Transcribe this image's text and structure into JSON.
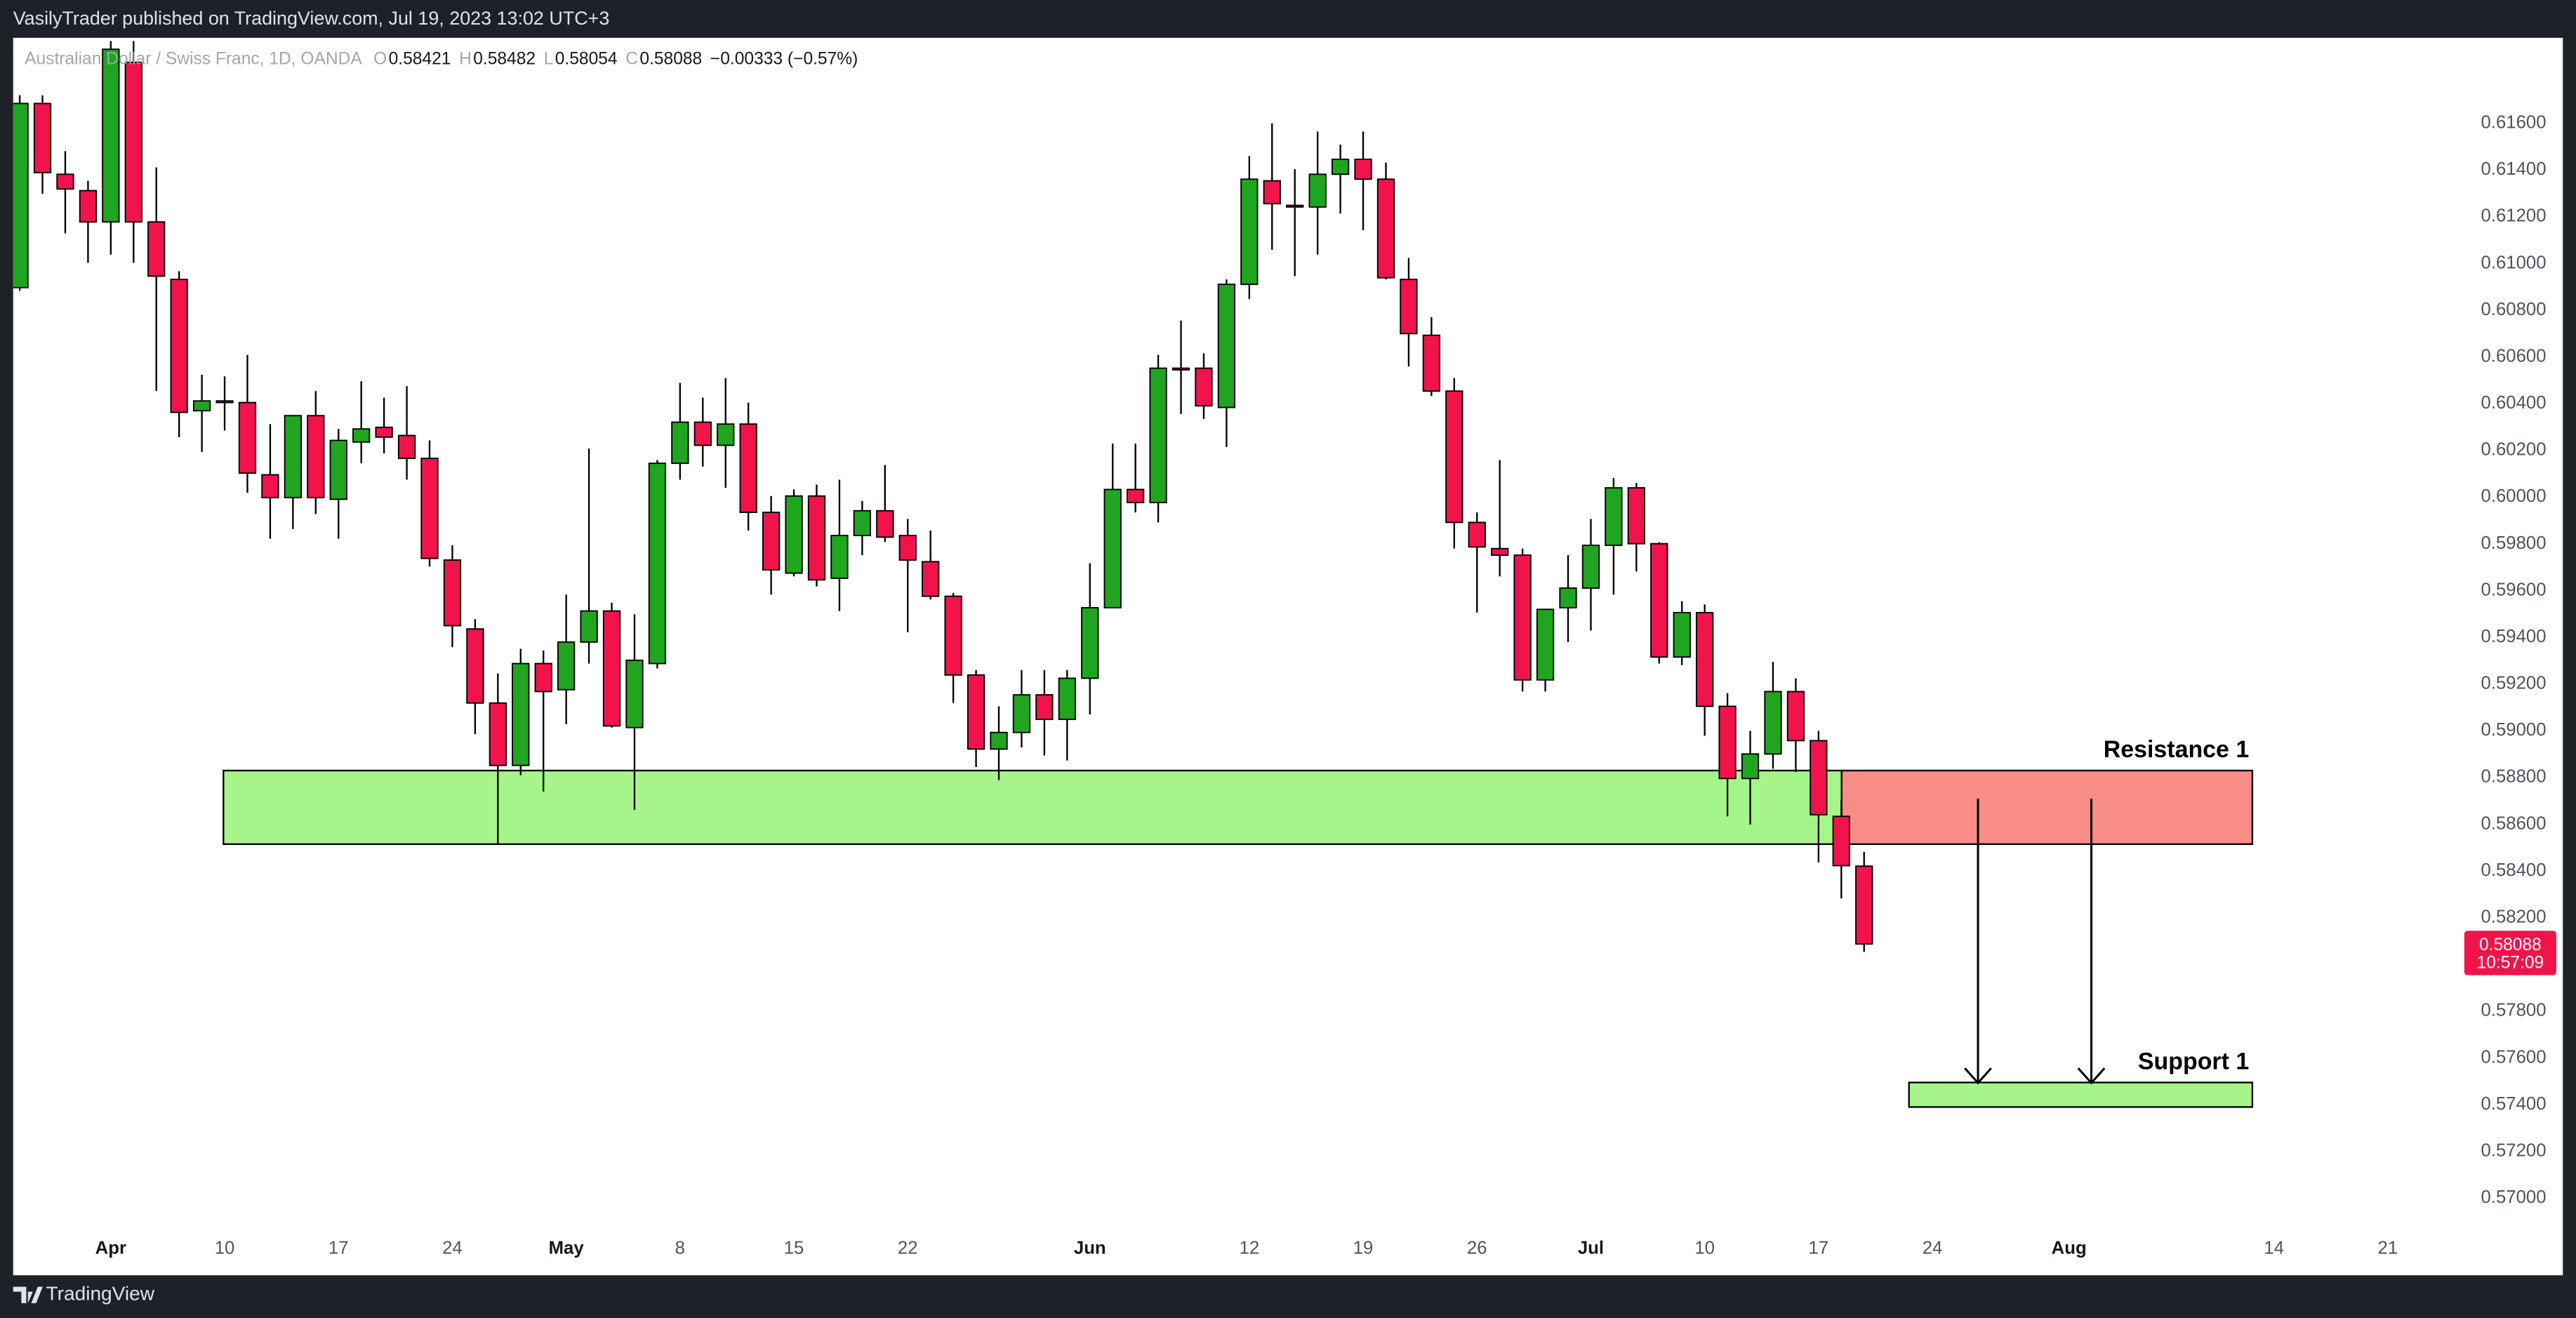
{
  "header": {
    "published": "VasilyTrader published on TradingView.com, Jul 19, 2023 13:02 UTC+3"
  },
  "footer": {
    "brand": "TradingView"
  },
  "chart_data": {
    "type": "candlestick",
    "title": "Australian Dollar / Swiss Franc, 1D, OANDA",
    "legend_keys": [
      "O",
      "H",
      "L",
      "C"
    ],
    "change_label": "−0.00333 (−0.57%)",
    "countdown": "10:57:09",
    "up_color": "#1fa51f",
    "down_color": "#f2134b",
    "x": [
      "2023-03-28",
      "2023-03-29",
      "2023-03-30",
      "2023-03-31",
      "2023-04-03",
      "2023-04-04",
      "2023-04-05",
      "2023-04-06",
      "2023-04-07",
      "2023-04-10",
      "2023-04-11",
      "2023-04-12",
      "2023-04-13",
      "2023-04-14",
      "2023-04-17",
      "2023-04-18",
      "2023-04-19",
      "2023-04-20",
      "2023-04-21",
      "2023-04-24",
      "2023-04-25",
      "2023-04-26",
      "2023-04-27",
      "2023-04-28",
      "2023-05-01",
      "2023-05-02",
      "2023-05-03",
      "2023-05-04",
      "2023-05-05",
      "2023-05-08",
      "2023-05-09",
      "2023-05-10",
      "2023-05-11",
      "2023-05-12",
      "2023-05-15",
      "2023-05-16",
      "2023-05-17",
      "2023-05-18",
      "2023-05-19",
      "2023-05-22",
      "2023-05-23",
      "2023-05-24",
      "2023-05-25",
      "2023-05-26",
      "2023-05-29",
      "2023-05-30",
      "2023-05-31",
      "2023-06-01",
      "2023-06-02",
      "2023-06-05",
      "2023-06-06",
      "2023-06-07",
      "2023-06-08",
      "2023-06-09",
      "2023-06-12",
      "2023-06-13",
      "2023-06-14",
      "2023-06-15",
      "2023-06-16",
      "2023-06-19",
      "2023-06-20",
      "2023-06-21",
      "2023-06-22",
      "2023-06-23",
      "2023-06-26",
      "2023-06-27",
      "2023-06-28",
      "2023-06-29",
      "2023-06-30",
      "2023-07-03",
      "2023-07-04",
      "2023-07-05",
      "2023-07-06",
      "2023-07-07",
      "2023-07-10",
      "2023-07-11",
      "2023-07-12",
      "2023-07-13",
      "2023-07-14",
      "2023-07-17",
      "2023-07-18",
      "2023-07-19"
    ],
    "open": [
      0.60897,
      0.61685,
      0.61382,
      0.61312,
      0.61178,
      0.61861,
      0.61178,
      0.60932,
      0.6037,
      0.60412,
      0.60405,
      0.60096,
      0.59998,
      0.60349,
      0.59991,
      0.60236,
      0.60299,
      0.60264,
      0.60166,
      0.59731,
      0.59436,
      0.59119,
      0.58852,
      0.59288,
      0.59176,
      0.5938,
      0.59513,
      0.59014,
      0.59288,
      0.60145,
      0.60321,
      0.60222,
      0.60313,
      0.59935,
      0.59675,
      0.60005,
      0.59653,
      0.59836,
      0.59942,
      0.59836,
      0.59724,
      0.59576,
      0.59239,
      0.58922,
      0.58993,
      0.59154,
      0.59049,
      0.59225,
      0.59527,
      0.60033,
      0.59977,
      0.60552,
      0.60552,
      0.60384,
      0.60911,
      0.61354,
      0.61249,
      0.61242,
      0.61382,
      0.61446,
      0.61361,
      0.60932,
      0.60693,
      0.60454,
      0.59892,
      0.5978,
      0.59752,
      0.59218,
      0.59527,
      0.59611,
      0.59794,
      0.6004,
      0.59801,
      0.59316,
      0.59506,
      0.59105,
      0.58796,
      0.58901,
      0.59168,
      0.58958,
      0.58634,
      0.58421
    ],
    "high": [
      0.6172,
      0.6172,
      0.61481,
      0.61354,
      0.61952,
      0.61952,
      0.61411,
      0.60967,
      0.60524,
      0.60517,
      0.60609,
      0.60313,
      0.60349,
      0.60454,
      0.60292,
      0.60496,
      0.60426,
      0.60475,
      0.60243,
      0.59794,
      0.59478,
      0.59246,
      0.59351,
      0.59344,
      0.59583,
      0.60208,
      0.59548,
      0.59499,
      0.60159,
      0.60489,
      0.60426,
      0.6051,
      0.60405,
      0.60005,
      0.60033,
      0.60054,
      0.60075,
      0.59984,
      0.60138,
      0.59907,
      0.59857,
      0.5959,
      0.5926,
      0.59105,
      0.5926,
      0.5926,
      0.5926,
      0.59717,
      0.60229,
      0.60229,
      0.60609,
      0.60756,
      0.60616,
      0.60932,
      0.6146,
      0.616,
      0.61404,
      0.61565,
      0.61509,
      0.61565,
      0.61432,
      0.61024,
      0.6077,
      0.6051,
      0.59935,
      0.60159,
      0.5978,
      0.5952,
      0.59752,
      0.59907,
      0.60082,
      0.60061,
      0.59808,
      0.59555,
      0.59541,
      0.59161,
      0.59,
      0.59295,
      0.59225,
      0.59,
      0.58704,
      0.58482
    ],
    "low": [
      0.60883,
      0.61298,
      0.61129,
      0.61003,
      0.61038,
      0.61003,
      0.60454,
      0.60257,
      0.60194,
      0.60285,
      0.60019,
      0.59822,
      0.59864,
      0.59928,
      0.59822,
      0.60145,
      0.60187,
      0.60075,
      0.59703,
      0.59358,
      0.58986,
      0.58515,
      0.5881,
      0.5874,
      0.59028,
      0.59288,
      0.59014,
      0.58662,
      0.59267,
      0.60075,
      0.60131,
      0.6004,
      0.59857,
      0.59583,
      0.59661,
      0.59618,
      0.59513,
      0.59752,
      0.59808,
      0.59422,
      0.59562,
      0.59119,
      0.58845,
      0.58789,
      0.58929,
      0.58894,
      0.58873,
      0.5907,
      0.59527,
      0.59935,
      0.59892,
      0.60356,
      0.60335,
      0.60215,
      0.60848,
      0.61059,
      0.60946,
      0.61038,
      0.61214,
      0.61143,
      0.60932,
      0.60559,
      0.60433,
      0.5978,
      0.59506,
      0.59661,
      0.59168,
      0.59168,
      0.5938,
      0.59429,
      0.59583,
      0.59682,
      0.59288,
      0.59281,
      0.58979,
      0.58634,
      0.58599,
      0.58838,
      0.58824,
      0.58437,
      0.58283,
      0.58054
    ],
    "close": [
      0.61685,
      0.61389,
      0.61319,
      0.61178,
      0.61917,
      0.61178,
      0.60946,
      0.60363,
      0.60412,
      0.60405,
      0.60103,
      0.59998,
      0.60349,
      0.59998,
      0.60243,
      0.60292,
      0.60257,
      0.60166,
      0.59738,
      0.5945,
      0.59119,
      0.58852,
      0.59288,
      0.59168,
      0.5938,
      0.59513,
      0.59021,
      0.59302,
      0.60145,
      0.60321,
      0.60222,
      0.60313,
      0.59935,
      0.59689,
      0.60005,
      0.59646,
      0.59836,
      0.59942,
      0.59829,
      0.59731,
      0.59576,
      0.59239,
      0.58922,
      0.58993,
      0.59154,
      0.59049,
      0.59225,
      0.59527,
      0.60033,
      0.59977,
      0.60552,
      0.60545,
      0.60391,
      0.60911,
      0.61361,
      0.61256,
      0.61242,
      0.61382,
      0.61446,
      0.61361,
      0.60939,
      0.607,
      0.60454,
      0.59892,
      0.59787,
      0.59752,
      0.59218,
      0.5952,
      0.59611,
      0.59794,
      0.6004,
      0.59801,
      0.59316,
      0.59506,
      0.59105,
      0.58796,
      0.58901,
      0.59168,
      0.58958,
      0.58641,
      0.58423,
      0.58088
    ],
    "ylim": [
      0.56888,
      0.61959
    ],
    "yticks": [
      {
        "value": 0.57,
        "label": "0.57000"
      },
      {
        "value": 0.572,
        "label": "0.57200"
      },
      {
        "value": 0.574,
        "label": "0.57400"
      },
      {
        "value": 0.576,
        "label": "0.57600"
      },
      {
        "value": 0.578,
        "label": "0.57800"
      },
      {
        "value": 0.58,
        "label": "0.58000"
      },
      {
        "value": 0.582,
        "label": "0.58200"
      },
      {
        "value": 0.584,
        "label": "0.58400"
      },
      {
        "value": 0.586,
        "label": "0.58600"
      },
      {
        "value": 0.588,
        "label": "0.58800"
      },
      {
        "value": 0.59,
        "label": "0.59000"
      },
      {
        "value": 0.592,
        "label": "0.59200"
      },
      {
        "value": 0.594,
        "label": "0.59400"
      },
      {
        "value": 0.596,
        "label": "0.59600"
      },
      {
        "value": 0.598,
        "label": "0.59800"
      },
      {
        "value": 0.6,
        "label": "0.60000"
      },
      {
        "value": 0.602,
        "label": "0.60200"
      },
      {
        "value": 0.604,
        "label": "0.60400"
      },
      {
        "value": 0.606,
        "label": "0.60600"
      },
      {
        "value": 0.608,
        "label": "0.60800"
      },
      {
        "value": 0.61,
        "label": "0.61000"
      },
      {
        "value": 0.612,
        "label": "0.61200"
      },
      {
        "value": 0.614,
        "label": "0.61400"
      },
      {
        "value": 0.616,
        "label": "0.61600"
      }
    ],
    "xticks": [
      {
        "value": "2023-04-03",
        "label": "Apr"
      },
      {
        "value": "2023-04-10",
        "label": "10"
      },
      {
        "value": "2023-04-17",
        "label": "17"
      },
      {
        "value": "2023-04-24",
        "label": "24"
      },
      {
        "value": "2023-05-01",
        "label": "May"
      },
      {
        "value": "2023-05-08",
        "label": "8"
      },
      {
        "value": "2023-05-15",
        "label": "15"
      },
      {
        "value": "2023-05-22",
        "label": "22"
      },
      {
        "value": "2023-06-01",
        "label": "Jun"
      },
      {
        "value": "2023-06-12",
        "label": "12"
      },
      {
        "value": "2023-06-19",
        "label": "19"
      },
      {
        "value": "2023-06-26",
        "label": "26"
      },
      {
        "value": "2023-07-03",
        "label": "Jul"
      },
      {
        "value": "2023-07-10",
        "label": "10"
      },
      {
        "value": "2023-07-17",
        "label": "17"
      },
      {
        "value": "2023-07-24",
        "label": "24"
      },
      {
        "value": "2023-08-01",
        "label": "Aug"
      },
      {
        "value": "2023-08-14",
        "label": "14"
      },
      {
        "value": "2023-08-21",
        "label": "21"
      }
    ],
    "grid": false,
    "zones": [
      {
        "label": "Resistance 1",
        "top": 0.5883,
        "bottom": 0.58515,
        "color": "#a6f58a",
        "broken_color": "#f88c86"
      },
      {
        "label": "Support 1",
        "top": 0.57495,
        "bottom": 0.5739,
        "color": "#a6f58a"
      }
    ]
  }
}
